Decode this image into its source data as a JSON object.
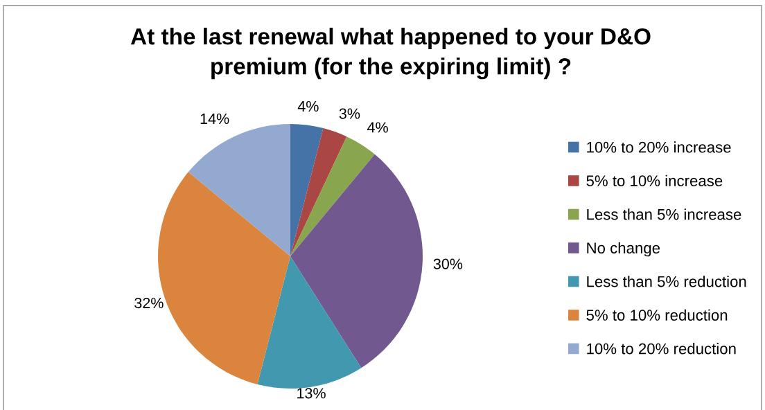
{
  "chart_data": {
    "type": "pie",
    "title": "At the last renewal what happened to your D&O\npremium (for the expiring limit) ?",
    "categories": [
      "10% to 20% increase",
      "5% to 10% increase",
      "Less than 5% increase",
      "No change",
      "Less than 5% reduction",
      "5% to 10% reduction",
      "10% to 20% reduction"
    ],
    "values": [
      4,
      3,
      4,
      30,
      13,
      32,
      14
    ],
    "colors": [
      "#4572a7",
      "#aa4643",
      "#89a54e",
      "#71588f",
      "#4198af",
      "#db843d",
      "#93a9cf"
    ],
    "value_labels": [
      "4%",
      "3%",
      "4%",
      "30%",
      "13%",
      "32%",
      "14%"
    ],
    "legend": "right"
  }
}
